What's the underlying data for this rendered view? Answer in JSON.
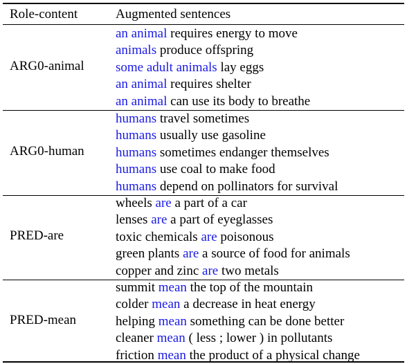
{
  "accent_color": "#1a1ae6",
  "headers": {
    "role": "Role-content",
    "sentences": "Augmented sentences"
  },
  "groups": [
    {
      "role": "ARG0-animal",
      "sentences": [
        {
          "pre": "",
          "hl": "an animal",
          "post": " requires energy to move"
        },
        {
          "pre": "",
          "hl": "animals",
          "post": " produce offspring"
        },
        {
          "pre": "",
          "hl": "some adult animals",
          "post": " lay eggs"
        },
        {
          "pre": "",
          "hl": "an animal",
          "post": " requires shelter"
        },
        {
          "pre": "",
          "hl": "an animal",
          "post": " can use its body to breathe"
        }
      ]
    },
    {
      "role": "ARG0-human",
      "sentences": [
        {
          "pre": "",
          "hl": "humans",
          "post": " travel sometimes"
        },
        {
          "pre": "",
          "hl": "humans",
          "post": " usually use gasoline"
        },
        {
          "pre": "",
          "hl": "humans",
          "post": " sometimes endanger themselves"
        },
        {
          "pre": "",
          "hl": "humans",
          "post": " use coal to make food"
        },
        {
          "pre": "",
          "hl": "humans",
          "post": " depend on pollinators for survival"
        }
      ]
    },
    {
      "role": "PRED-are",
      "sentences": [
        {
          "pre": "wheels ",
          "hl": "are",
          "post": " a part of a car"
        },
        {
          "pre": "lenses ",
          "hl": "are",
          "post": " a part of eyeglasses"
        },
        {
          "pre": "toxic chemicals ",
          "hl": "are",
          "post": " poisonous"
        },
        {
          "pre": "green plants ",
          "hl": "are",
          "post": " a source of food for animals"
        },
        {
          "pre": "copper and zinc ",
          "hl": "are",
          "post": " two metals"
        }
      ]
    },
    {
      "role": "PRED-mean",
      "sentences": [
        {
          "pre": "summit ",
          "hl": "mean",
          "post": " the top of the mountain"
        },
        {
          "pre": "colder ",
          "hl": "mean",
          "post": " a decrease in heat energy"
        },
        {
          "pre": "helping ",
          "hl": "mean",
          "post": " something can be done better"
        },
        {
          "pre": "cleaner ",
          "hl": "mean",
          "post": " ( less ; lower ) in pollutants"
        },
        {
          "pre": "friction ",
          "hl": "mean",
          "post": " the product of a physical change"
        }
      ]
    }
  ]
}
